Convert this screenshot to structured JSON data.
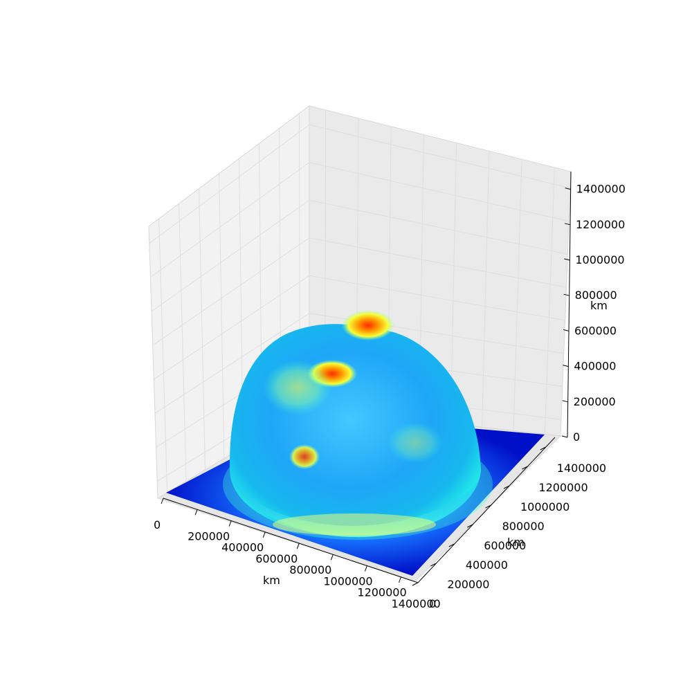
{
  "chart_data": {
    "type": "surface",
    "title": "",
    "xlabel": "km",
    "ylabel": "km",
    "zlabel": "km",
    "x_ticks": [
      "0",
      "200000",
      "400000",
      "600000",
      "800000",
      "1000000",
      "1200000",
      "1400000"
    ],
    "y_ticks": [
      "0",
      "200000",
      "400000",
      "600000",
      "800000",
      "1000000",
      "1200000",
      "1400000"
    ],
    "z_ticks": [
      "0",
      "200000",
      "400000",
      "600000",
      "800000",
      "1000000",
      "1200000",
      "1400000"
    ],
    "xlim": [
      0,
      1500000
    ],
    "ylim": [
      0,
      1500000
    ],
    "zlim": [
      0,
      1500000
    ],
    "surface": {
      "shape": "hemisphere",
      "center_x": 750000,
      "center_y": 750000,
      "radius": 700000,
      "peak_z": 790000,
      "colormap": "jet",
      "hot_spots": [
        {
          "x": 700000,
          "y": 1050000,
          "z": 790000
        },
        {
          "x": 560000,
          "y": 900000,
          "z": 620000
        },
        {
          "x": 420000,
          "y": 520000,
          "z": 400000
        }
      ]
    },
    "grid": true
  }
}
